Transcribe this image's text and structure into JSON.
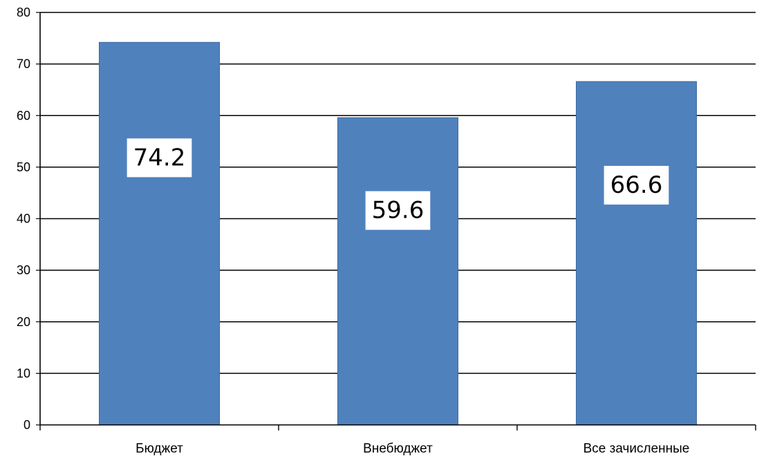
{
  "chart_data": {
    "type": "bar",
    "categories": [
      "Бюджет",
      "Внебюджет",
      "Все зачисленные"
    ],
    "values": [
      74.2,
      59.6,
      66.6
    ],
    "data_labels": [
      "74.2",
      "59.6",
      "66.6"
    ],
    "title": "",
    "xlabel": "",
    "ylabel": "",
    "ylim": [
      0,
      80
    ],
    "yticks": [
      0,
      10,
      20,
      30,
      40,
      50,
      60,
      70,
      80
    ],
    "grid": true,
    "legend": "none",
    "bar_color": "#4f81bd",
    "bar_edge_color": "#3a6a9f"
  }
}
